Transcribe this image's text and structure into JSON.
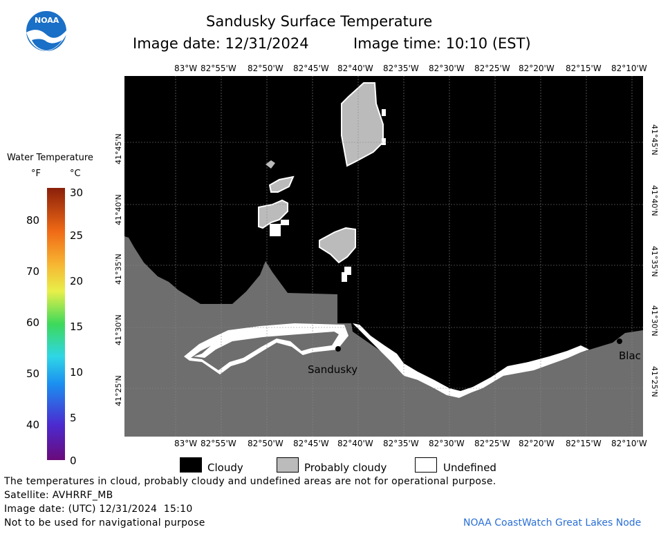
{
  "header": {
    "title": "Sandusky Surface Temperature",
    "image_date": "Image date: 12/31/2024",
    "image_time": "Image time: 10:10 (EST)"
  },
  "logo": {
    "text": "NOAA"
  },
  "colorbar": {
    "title": "Water Temperature",
    "unit_f": "°F",
    "unit_c": "°C",
    "f_ticks": [
      "80",
      "70",
      "60",
      "50",
      "40"
    ],
    "c_ticks": [
      "30",
      "25",
      "20",
      "15",
      "10",
      "5",
      "0"
    ]
  },
  "axes": {
    "lon_labels": [
      "83°W",
      "82°55'W",
      "82°50'W",
      "82°45'W",
      "82°40'W",
      "82°35'W",
      "82°30'W",
      "82°25'W",
      "82°20'W",
      "82°15'W",
      "82°10'W"
    ],
    "lat_labels": [
      "41°45'N",
      "41°40'N",
      "41°35'N",
      "41°30'N",
      "41°25'N"
    ]
  },
  "places": {
    "sandusky": "Sandusky",
    "blac": "Blac"
  },
  "legend": {
    "cloudy": "Cloudy",
    "probably_cloudy": "Probably cloudy",
    "undefined": "Undefined"
  },
  "footer": {
    "disclaimer": "The temperatures in cloud, probably cloudy and undefined areas are not for operational purpose.",
    "satellite": "Satellite: AVHRRF_MB",
    "utc_date": "Image date: (UTC) 12/31/2024  15:10",
    "nav_warning": "Not to be used for navigational purpose",
    "node": "NOAA CoastWatch Great Lakes Node"
  },
  "colors": {
    "cloudy": "#000000",
    "probably_cloudy": "#bbbbbb",
    "land": "#6e6e6e",
    "undefined": "#ffffff"
  }
}
